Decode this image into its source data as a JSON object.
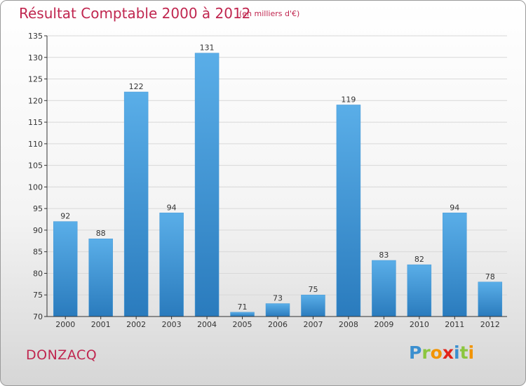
{
  "header": {
    "title": "Résultat Comptable 2000 à 2012",
    "unit": "(en milliers d'€)"
  },
  "footer": {
    "commune": "DONZACQ",
    "logo_text": "Proxiti"
  },
  "colors": {
    "title": "#c0264f",
    "bar_top": "#5aaee8",
    "bar_bottom": "#2a7bbd",
    "grid": "#d8d8d8"
  },
  "chart_data": {
    "type": "bar",
    "title": "Résultat Comptable 2000 à 2012",
    "subtitle": "(en milliers d'€)",
    "xlabel": "",
    "ylabel": "",
    "categories": [
      "2000",
      "2001",
      "2002",
      "2003",
      "2004",
      "2005",
      "2006",
      "2007",
      "2008",
      "2009",
      "2010",
      "2011",
      "2012"
    ],
    "values": [
      92,
      88,
      122,
      94,
      131,
      71,
      73,
      75,
      119,
      83,
      82,
      94,
      78
    ],
    "ylim": [
      70,
      135
    ],
    "yticks": [
      70,
      75,
      80,
      85,
      90,
      95,
      100,
      105,
      110,
      115,
      120,
      125,
      130,
      135
    ],
    "grid": true,
    "legend": "none"
  }
}
